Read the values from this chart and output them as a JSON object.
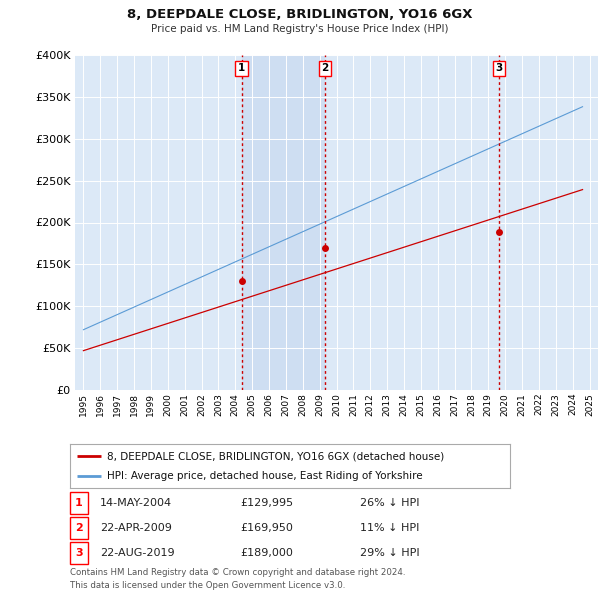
{
  "title": "8, DEEPDALE CLOSE, BRIDLINGTON, YO16 6GX",
  "subtitle": "Price paid vs. HM Land Registry's House Price Index (HPI)",
  "background_color": "#ffffff",
  "plot_bg_color": "#dce9f7",
  "grid_color": "#c8d8e8",
  "ylim": [
    0,
    400000
  ],
  "yticks": [
    0,
    50000,
    100000,
    150000,
    200000,
    250000,
    300000,
    350000,
    400000
  ],
  "ytick_labels": [
    "£0",
    "£50K",
    "£100K",
    "£150K",
    "£200K",
    "£250K",
    "£300K",
    "£350K",
    "£400K"
  ],
  "xlim_start": 1994.5,
  "xlim_end": 2025.5,
  "transactions": [
    {
      "num": 1,
      "date_label": "14-MAY-2004",
      "year": 2004.37,
      "price": 129995,
      "pct": "26%",
      "direction": "↓"
    },
    {
      "num": 2,
      "date_label": "22-APR-2009",
      "year": 2009.31,
      "price": 169950,
      "pct": "11%",
      "direction": "↓"
    },
    {
      "num": 3,
      "date_label": "22-AUG-2019",
      "year": 2019.64,
      "price": 189000,
      "pct": "29%",
      "direction": "↓"
    }
  ],
  "shade_color": "#c5d8ef",
  "hpi_color": "#5b9bd5",
  "property_color": "#cc0000",
  "vline_color": "#cc0000",
  "legend_label_property": "8, DEEPDALE CLOSE, BRIDLINGTON, YO16 6GX (detached house)",
  "legend_label_hpi": "HPI: Average price, detached house, East Riding of Yorkshire",
  "footer_line1": "Contains HM Land Registry data © Crown copyright and database right 2024.",
  "footer_line2": "This data is licensed under the Open Government Licence v3.0."
}
